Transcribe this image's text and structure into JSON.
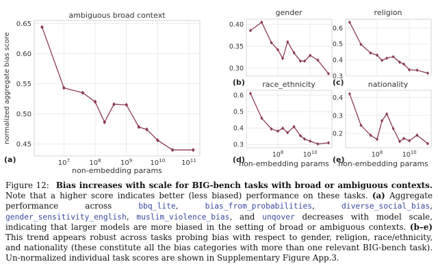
{
  "figure": {
    "panel_a_letter": "(a)",
    "panel_b_letter": "(b)",
    "panel_c_letter": "(c)",
    "panel_d_letter": "(d)",
    "panel_e_letter": "(e)",
    "line_color": "#8b3a52"
  },
  "chart_data": [
    {
      "type": "line",
      "title": "ambiguous broad context",
      "xlabel": "non-embedding params",
      "ylabel": "normalized aggregate bias score",
      "xscale": "log",
      "xticks": [
        "10^7",
        "10^8",
        "10^9",
        "10^10",
        "10^11"
      ],
      "yticks": [
        "0.45",
        "0.50",
        "0.55",
        "0.60",
        "0.65"
      ],
      "ylim": [
        0.43,
        0.655
      ],
      "x": [
        2000000.0,
        10000000.0,
        40000000.0,
        100000000.0,
        200000000.0,
        400000000.0,
        1000000000.0,
        2500000000.0,
        4500000000.0,
        10000000000.0,
        30000000000.0,
        137000000000.0
      ],
      "y": [
        0.644,
        0.543,
        0.535,
        0.52,
        0.486,
        0.516,
        0.515,
        0.478,
        0.474,
        0.456,
        0.44,
        0.44
      ],
      "grid": true
    },
    {
      "type": "line",
      "title": "gender",
      "xscale": "log",
      "yticks": [
        "0.30",
        "0.35",
        "0.40"
      ],
      "ylim": [
        0.282,
        0.412
      ],
      "x": [
        2000000.0,
        10000000.0,
        40000000.0,
        100000000.0,
        200000000.0,
        400000000.0,
        1000000000.0,
        2500000000.0,
        4500000000.0,
        10000000000.0,
        30000000000.0,
        137000000000.0
      ],
      "y": [
        0.386,
        0.405,
        0.358,
        0.342,
        0.322,
        0.36,
        0.335,
        0.316,
        0.316,
        0.329,
        0.318,
        0.287
      ],
      "grid": true
    },
    {
      "type": "line",
      "title": "religion",
      "xscale": "log",
      "yticks": [
        "0.3",
        "0.4",
        "0.5",
        "0.6"
      ],
      "ylim": [
        0.3,
        0.655
      ],
      "x": [
        2000000.0,
        10000000.0,
        40000000.0,
        100000000.0,
        200000000.0,
        400000000.0,
        1000000000.0,
        2500000000.0,
        4500000000.0,
        10000000000.0,
        30000000000.0,
        137000000000.0
      ],
      "y": [
        0.636,
        0.497,
        0.443,
        0.43,
        0.397,
        0.411,
        0.42,
        0.386,
        0.374,
        0.338,
        0.336,
        0.317
      ],
      "grid": true
    },
    {
      "type": "line",
      "title": "race_ethnicity",
      "xlabel": "non-embedding params",
      "xscale": "log",
      "xticks": [
        "10^8",
        "10^10"
      ],
      "yticks": [
        "0.3",
        "0.4",
        "0.5",
        "0.6"
      ],
      "ylim": [
        0.28,
        0.63
      ],
      "x": [
        2000000.0,
        10000000.0,
        40000000.0,
        100000000.0,
        200000000.0,
        400000000.0,
        1000000000.0,
        2500000000.0,
        4500000000.0,
        10000000000.0,
        30000000000.0,
        137000000000.0
      ],
      "y": [
        0.611,
        0.46,
        0.394,
        0.381,
        0.399,
        0.372,
        0.408,
        0.353,
        0.333,
        0.32,
        0.303,
        0.31
      ],
      "grid": true
    },
    {
      "type": "line",
      "title": "nationality",
      "xlabel": "non-embedding params",
      "xscale": "log",
      "xticks": [
        "10^8",
        "10^10"
      ],
      "yticks": [
        "0.2",
        "0.3",
        "0.4"
      ],
      "ylim": [
        0.12,
        0.44
      ],
      "x": [
        2000000.0,
        10000000.0,
        40000000.0,
        100000000.0,
        200000000.0,
        400000000.0,
        1000000000.0,
        2500000000.0,
        4500000000.0,
        10000000000.0,
        30000000000.0,
        137000000000.0
      ],
      "y": [
        0.42,
        0.245,
        0.189,
        0.167,
        0.27,
        0.308,
        0.227,
        0.155,
        0.172,
        0.159,
        0.19,
        0.143
      ],
      "grid": true
    }
  ],
  "caption": {
    "figure_label": "Figure 12:",
    "bold_text": "Bias increases with scale for BIG-bench tasks with broad or ambiguous contexts.",
    "text_1": " Note that a higher score indicates better (less biased) performance on these tasks. ",
    "label_a": "(a)",
    "text_2": " Aggregate performance across ",
    "task_1": "bbq_lite",
    "sep_1": ", ",
    "task_2": "bias_from_probabilities",
    "sep_2": ", ",
    "task_3": "diverse_social_bias",
    "sep_3": ", ",
    "task_4": "gender_sensitivity_english",
    "sep_4": ", ",
    "task_5": "muslim_violence_bias",
    "sep_5": ", and ",
    "task_6": "unqover",
    "text_3": " decreases with model scale, indicating that larger models are more biased in the setting of broad or ambiguous contexts. ",
    "label_be": "(b–e)",
    "text_4": " This trend appears robust across tasks probing bias with respect to gender, religion, race/ethnicity, and nationality (these constitute all the bias categories with more than one relevant BIG-bench task). Un-normalized individual task scores are shown in Supplementary Figure App.3."
  }
}
